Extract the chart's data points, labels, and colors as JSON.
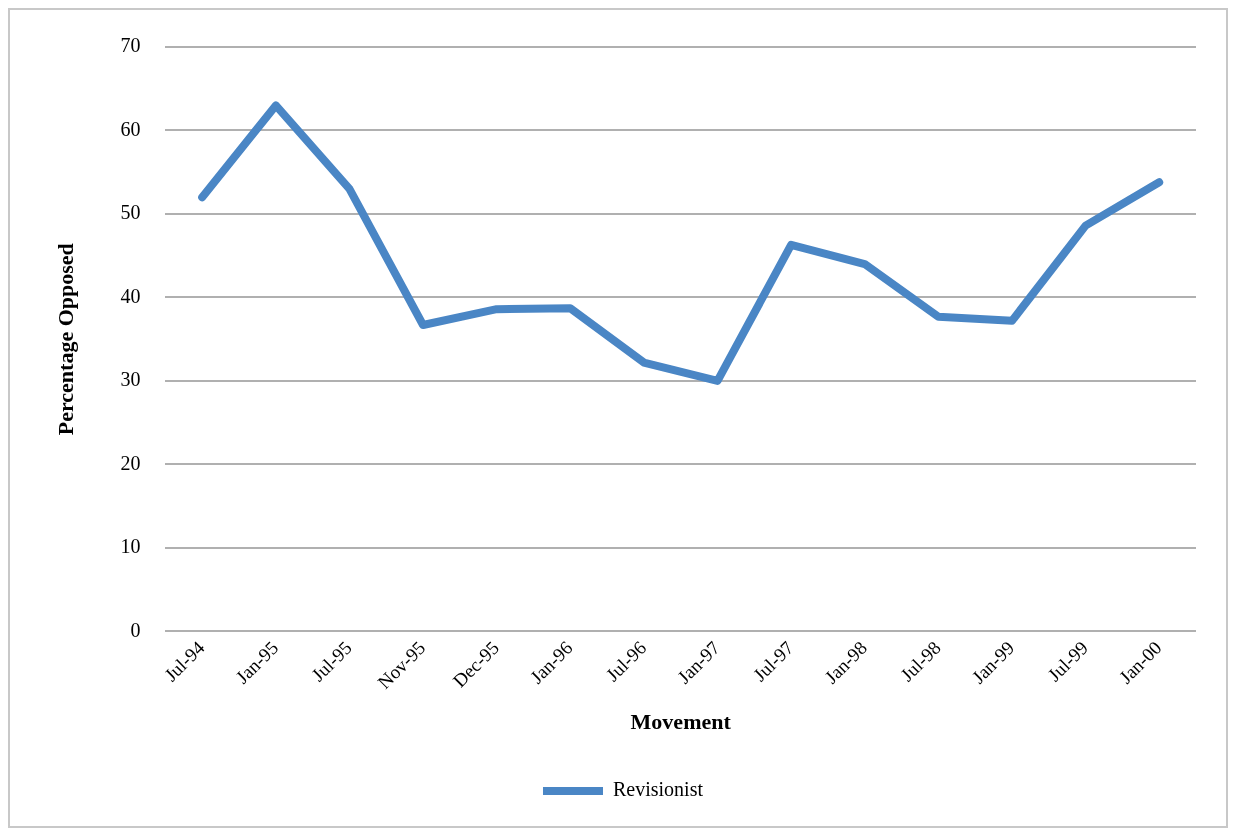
{
  "chart_data": {
    "type": "line",
    "xlabel": "Movement",
    "ylabel": "Percentage Opposed",
    "categories": [
      "Jul-94",
      "Jan-95",
      "Jul-95",
      "Nov-95",
      "Dec-95",
      "Jan-96",
      "Jul-96",
      "Jan-97",
      "Jul-97",
      "Jan-98",
      "Jul-98",
      "Jan-99",
      "Jul-99",
      "Jan-00"
    ],
    "series": [
      {
        "name": "Revisionist",
        "color": "#4a86c5",
        "values": [
          52,
          63,
          53,
          36.7,
          38.6,
          38.7,
          32.2,
          30,
          46.3,
          44,
          37.7,
          37.2,
          48.6,
          53.8
        ]
      }
    ],
    "ylim": [
      0,
      70
    ],
    "yticks": [
      0,
      10,
      20,
      30,
      40,
      50,
      60,
      70
    ],
    "grid": "y",
    "legend": "bottom",
    "marker": "none",
    "line_style": "solid"
  }
}
